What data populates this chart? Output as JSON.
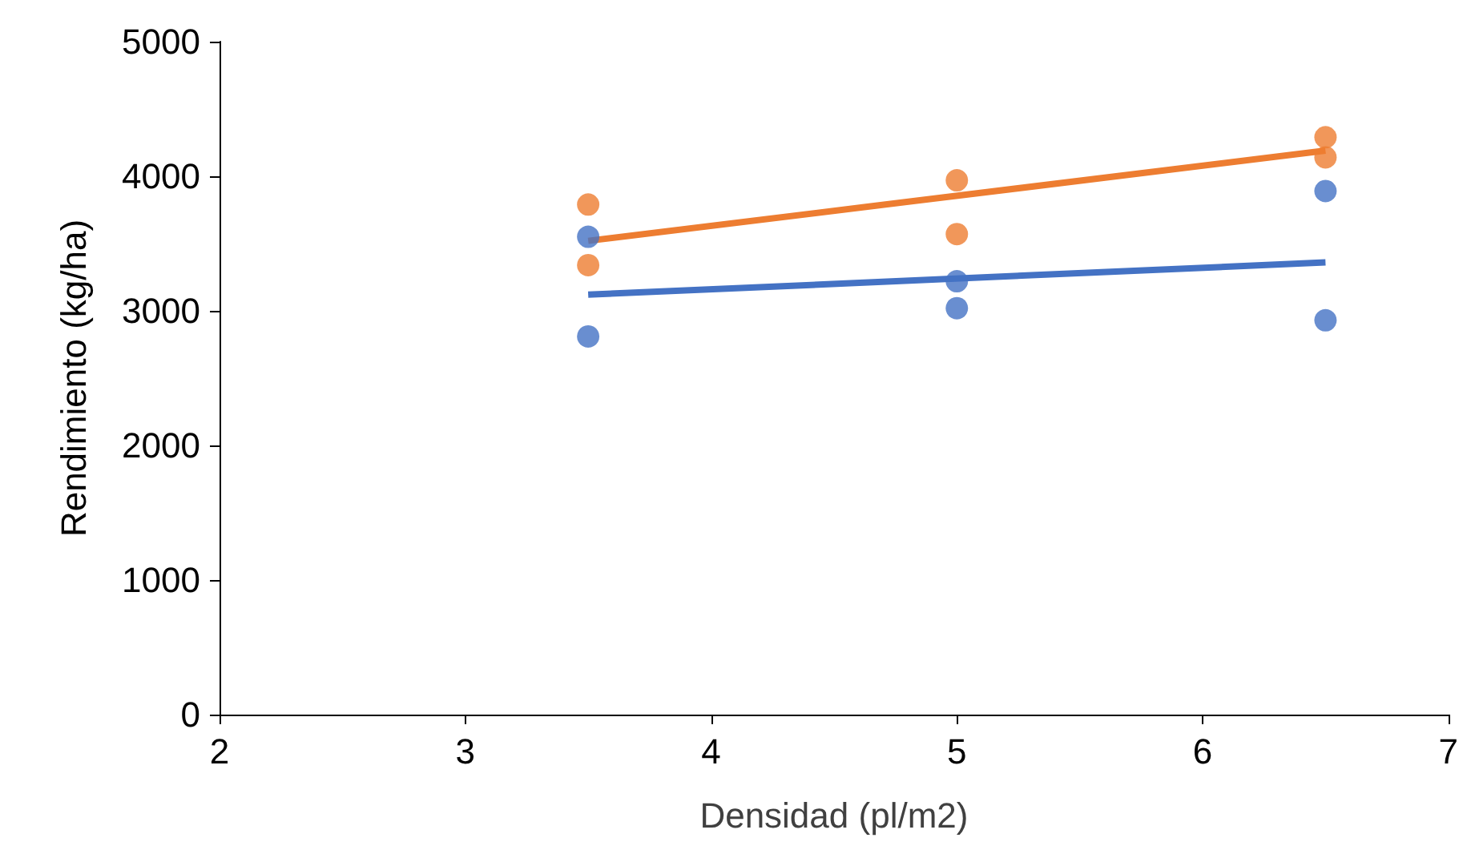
{
  "chart_data": {
    "type": "scatter",
    "xlabel": "Densidad (pl/m2)",
    "ylabel": "Rendimiento (kg/ha)",
    "xlim": [
      2,
      7
    ],
    "xticks": [
      2,
      3,
      4,
      5,
      6,
      7
    ],
    "ylim": [
      0,
      5000
    ],
    "yticks": [
      0,
      1000,
      2000,
      3000,
      4000,
      5000
    ],
    "grid": false,
    "series": [
      {
        "color": "#4472c4",
        "marker": "circle",
        "x": [
          3.5,
          3.5,
          5,
          5,
          6.5,
          6.5
        ],
        "values": [
          3550,
          2810,
          3220,
          3020,
          3890,
          2930
        ]
      },
      {
        "color": "#ed7d31",
        "marker": "circle",
        "x": [
          3.5,
          3.5,
          5,
          5,
          6.5,
          6.5
        ],
        "values": [
          3790,
          3340,
          3970,
          3570,
          4290,
          4140
        ]
      },
      {
        "type": "line",
        "marker": "none",
        "color": "#4472c4",
        "x": [
          3.5,
          6.5
        ],
        "values": [
          3120,
          3360
        ]
      },
      {
        "type": "line",
        "marker": "none",
        "color": "#ed7d31",
        "x": [
          3.5,
          6.5
        ],
        "values": [
          3520,
          4190
        ]
      }
    ]
  }
}
